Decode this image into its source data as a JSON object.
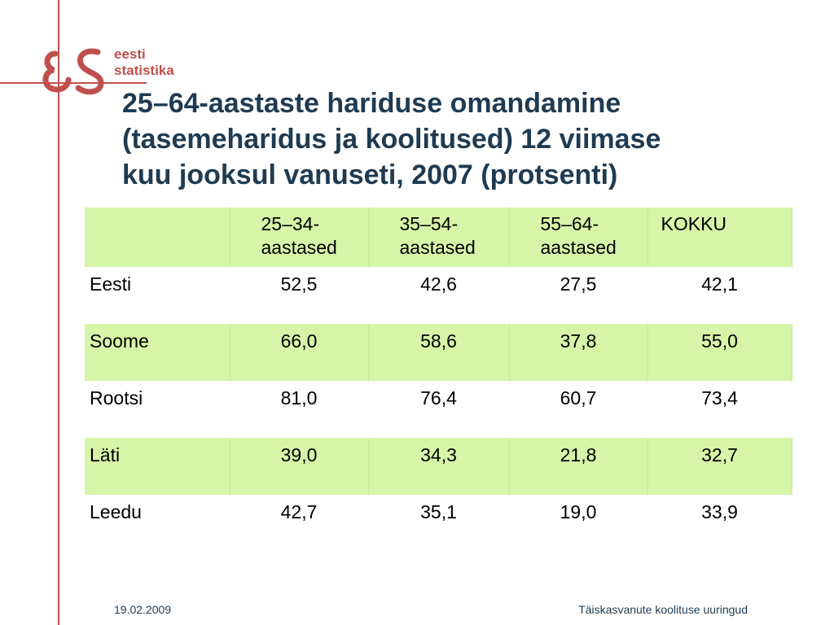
{
  "logo": {
    "line1": "eesti",
    "line2": "statistika"
  },
  "title": {
    "line1": "25–64-aastaste hariduse omandamine",
    "line2": "(tasemeharidus ja koolitused) 12 viimase",
    "line3": "kuu jooksul vanuseti, 2007 (protsenti)"
  },
  "table": {
    "headers": [
      "",
      "25–34-",
      "35–54-",
      "55–64-",
      "KOKKU"
    ],
    "headers_line2": [
      "",
      "aastased",
      "aastased",
      "aastased",
      ""
    ],
    "rows": [
      [
        "Eesti",
        "52,5",
        "42,6",
        "27,5",
        "42,1"
      ],
      [
        "Soome",
        "66,0",
        "58,6",
        "37,8",
        "55,0"
      ],
      [
        "Rootsi",
        "81,0",
        "76,4",
        "60,7",
        "73,4"
      ],
      [
        "Läti",
        "39,0",
        "34,3",
        "21,8",
        "32,7"
      ],
      [
        "Leedu",
        "42,7",
        "35,1",
        "19,0",
        "33,9"
      ]
    ]
  },
  "footer": {
    "date": "19.02.2009",
    "title": "Täiskasvanute koolituse uuringud"
  },
  "colors": {
    "accent": "#c0504d",
    "title": "#1f3b52",
    "row_shade": "#d6f5a8"
  }
}
